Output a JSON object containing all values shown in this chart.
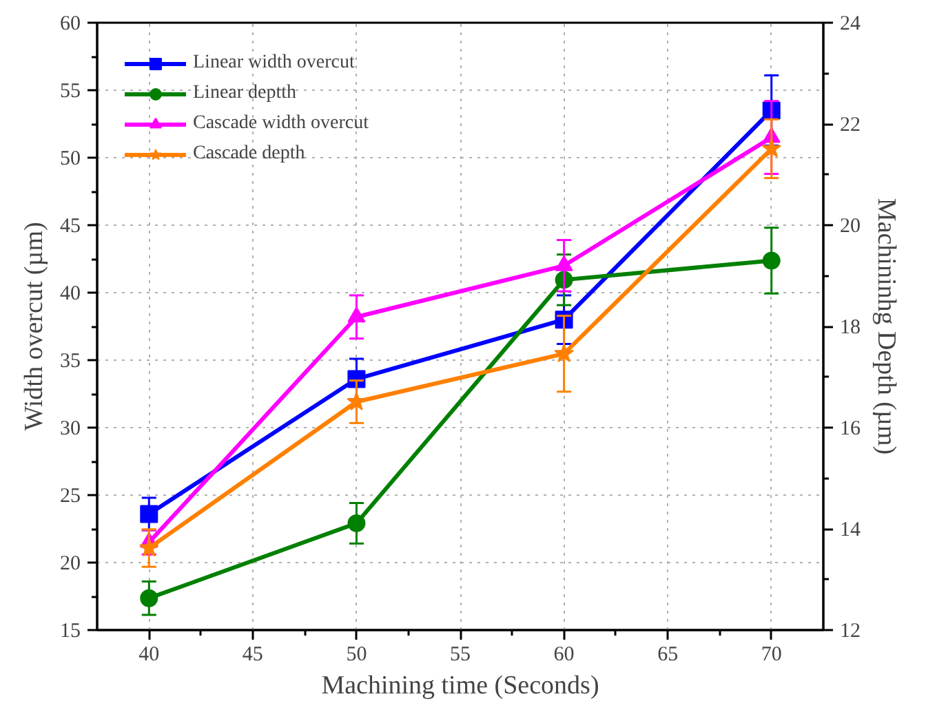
{
  "chart_data": {
    "type": "line",
    "xlabel": "Machining time (Seconds)",
    "ylabel": "Width overcut (µm)",
    "y2label": "Machininhg Depth (µm)",
    "x": [
      40,
      50,
      60,
      70
    ],
    "xlim": [
      37.5,
      72.5
    ],
    "xticks": [
      40,
      45,
      50,
      55,
      60,
      65,
      70
    ],
    "ylim": [
      15,
      60
    ],
    "yticks": [
      15,
      20,
      25,
      30,
      35,
      40,
      45,
      50,
      55,
      60
    ],
    "y2lim": [
      12,
      24
    ],
    "y2ticks": [
      12,
      14,
      16,
      18,
      20,
      22,
      24
    ],
    "grid": true,
    "legend": "top left",
    "line_style": "solid",
    "series": [
      {
        "name": "Linear width overcut",
        "color": "#0000ff",
        "marker": "square",
        "values": [
          23.6,
          33.6,
          38.0,
          53.5
        ],
        "errors": [
          1.2,
          1.5,
          1.8,
          2.6
        ]
      },
      {
        "name": "Linear deptth",
        "color": "#008000",
        "marker": "circle",
        "axis": "y2",
        "values": [
          12.63,
          14.11,
          18.92,
          19.3
        ],
        "errors": [
          0.33,
          0.4,
          0.5,
          0.65
        ]
      },
      {
        "name": "Cascade width overcut",
        "color": "#ff00ff",
        "marker": "triangle",
        "values": [
          21.5,
          38.2,
          42.0,
          51.5
        ],
        "errors": [
          0.9,
          1.6,
          1.9,
          2.7
        ]
      },
      {
        "name": "Cascade depth",
        "color": "#ff8000",
        "marker": "star",
        "axis": "y2",
        "values": [
          13.62,
          16.51,
          17.46,
          21.51
        ],
        "errors": [
          0.37,
          0.42,
          0.75,
          0.58
        ]
      }
    ]
  }
}
